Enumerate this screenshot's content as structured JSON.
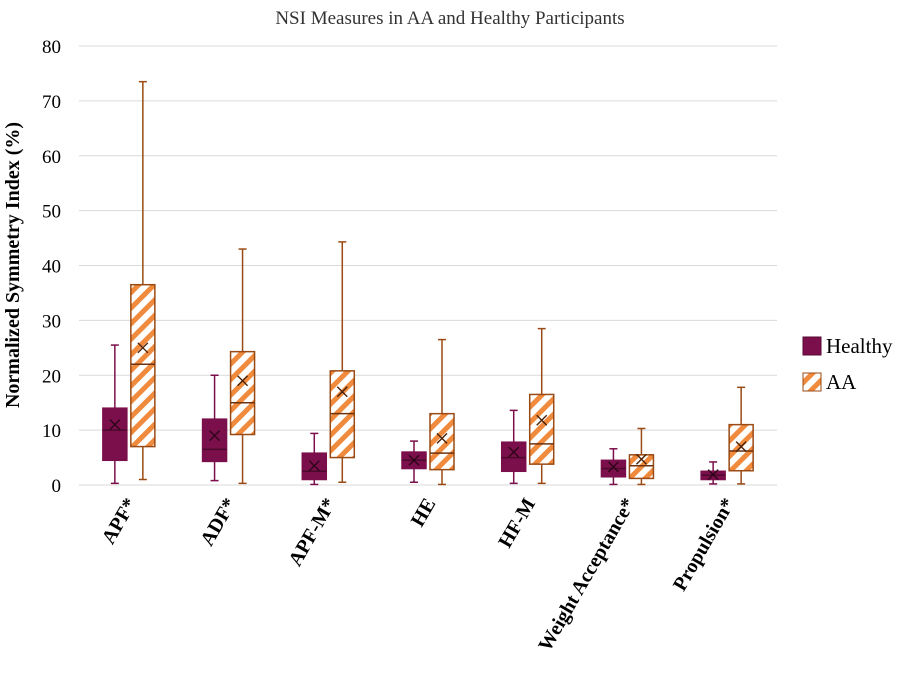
{
  "chart_data": {
    "type": "box",
    "title": "NSI Measures in AA and Healthy Participants",
    "xlabel": "",
    "ylabel": "Normalized Symmetry Index (%)",
    "ylim": [
      0,
      80
    ],
    "yticks": [
      "0",
      "10",
      "20",
      "30",
      "40",
      "50",
      "60",
      "70",
      "80"
    ],
    "grid": true,
    "legend_position": "right",
    "categories": [
      "APF*",
      "ADF*",
      "APF-M*",
      "HE",
      "HF-M",
      "Weight Acceptance*",
      "Propulsion*"
    ],
    "series": [
      {
        "name": "Healthy",
        "color": "#7b0f4b",
        "fill": "solid",
        "boxes": [
          {
            "min": 0.3,
            "q1": 4.5,
            "median": 10.0,
            "q3": 14.0,
            "max": 25.5,
            "mean": 11.0
          },
          {
            "min": 0.8,
            "q1": 4.3,
            "median": 6.5,
            "q3": 12.0,
            "max": 20.0,
            "mean": 9.0
          },
          {
            "min": 0.1,
            "q1": 1.0,
            "median": 2.5,
            "q3": 5.8,
            "max": 9.4,
            "mean": 3.5
          },
          {
            "min": 0.5,
            "q1": 3.0,
            "median": 4.5,
            "q3": 6.0,
            "max": 8.0,
            "mean": 4.5
          },
          {
            "min": 0.3,
            "q1": 2.5,
            "median": 5.0,
            "q3": 7.8,
            "max": 13.6,
            "mean": 6.0
          },
          {
            "min": 0.1,
            "q1": 1.5,
            "median": 3.0,
            "q3": 4.5,
            "max": 6.6,
            "mean": 3.3
          },
          {
            "min": 0.2,
            "q1": 1.0,
            "median": 1.8,
            "q3": 2.5,
            "max": 4.2,
            "mean": 1.9
          }
        ]
      },
      {
        "name": "AA",
        "color": "#f08a3c",
        "stroke": "#9a4a14",
        "fill": "hatched",
        "boxes": [
          {
            "min": 1.0,
            "q1": 7.0,
            "median": 22.0,
            "q3": 36.5,
            "max": 73.5,
            "mean": 25.0
          },
          {
            "min": 0.3,
            "q1": 9.2,
            "median": 15.0,
            "q3": 24.3,
            "max": 43.0,
            "mean": 19.0
          },
          {
            "min": 0.5,
            "q1": 5.0,
            "median": 13.0,
            "q3": 20.8,
            "max": 44.3,
            "mean": 17.0
          },
          {
            "min": 0.1,
            "q1": 2.8,
            "median": 5.8,
            "q3": 13.0,
            "max": 26.5,
            "mean": 8.5
          },
          {
            "min": 0.3,
            "q1": 3.8,
            "median": 7.5,
            "q3": 16.5,
            "max": 28.5,
            "mean": 11.8
          },
          {
            "min": 0.1,
            "q1": 1.2,
            "median": 3.5,
            "q3": 5.5,
            "max": 10.3,
            "mean": 4.7
          },
          {
            "min": 0.2,
            "q1": 2.6,
            "median": 6.2,
            "q3": 11.0,
            "max": 17.8,
            "mean": 7.0
          }
        ]
      }
    ]
  }
}
